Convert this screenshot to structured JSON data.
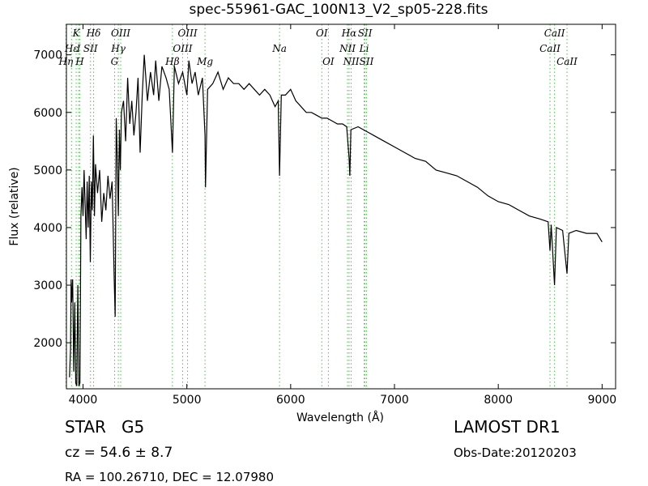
{
  "chart_data": {
    "type": "line",
    "title": "spec-55961-GAC_100N13_V2_sp05-228.fits",
    "xlabel": "Wavelength (Å)",
    "ylabel": "Flux (relative)",
    "xlim": [
      3840,
      9130
    ],
    "ylim": [
      1200,
      7530
    ],
    "xticks": [
      4000,
      5000,
      6000,
      7000,
      8000,
      9000
    ],
    "yticks": [
      2000,
      3000,
      4000,
      5000,
      6000,
      7000
    ],
    "color": "#000000",
    "line_marker_color": "#4cbf4c",
    "x": [
      3870,
      3880,
      3885,
      3890,
      3900,
      3910,
      3920,
      3930,
      3940,
      3950,
      3960,
      3970,
      3980,
      3990,
      4000,
      4010,
      4020,
      4030,
      4040,
      4050,
      4060,
      4070,
      4080,
      4090,
      4100,
      4110,
      4120,
      4140,
      4160,
      4180,
      4200,
      4220,
      4240,
      4260,
      4280,
      4300,
      4310,
      4320,
      4330,
      4340,
      4350,
      4360,
      4370,
      4390,
      4410,
      4430,
      4450,
      4470,
      4490,
      4510,
      4530,
      4550,
      4570,
      4590,
      4620,
      4650,
      4680,
      4700,
      4730,
      4760,
      4800,
      4830,
      4861,
      4880,
      4920,
      4960,
      5000,
      5020,
      5050,
      5080,
      5110,
      5150,
      5175,
      5180,
      5200,
      5250,
      5300,
      5350,
      5400,
      5450,
      5500,
      5550,
      5600,
      5650,
      5700,
      5750,
      5800,
      5850,
      5880,
      5893,
      5910,
      5950,
      6000,
      6050,
      6100,
      6150,
      6200,
      6250,
      6300,
      6350,
      6400,
      6450,
      6500,
      6540,
      6563,
      6570,
      6580,
      6650,
      6700,
      6750,
      6800,
      6900,
      7000,
      7100,
      7200,
      7300,
      7400,
      7500,
      7600,
      7700,
      7800,
      7900,
      8000,
      8100,
      8200,
      8300,
      8400,
      8480,
      8498,
      8510,
      8542,
      8560,
      8620,
      8662,
      8680,
      8750,
      8850,
      8950,
      9000
    ],
    "values": [
      1400,
      1900,
      3100,
      2700,
      3100,
      1500,
      2700,
      1300,
      1250,
      3000,
      1250,
      1300,
      4200,
      4700,
      4200,
      5000,
      4400,
      3800,
      4800,
      4000,
      4900,
      3400,
      4800,
      4300,
      5600,
      4200,
      5100,
      4600,
      5000,
      4100,
      4600,
      4300,
      4900,
      4500,
      4800,
      3100,
      2450,
      5900,
      5200,
      4200,
      5700,
      5000,
      6000,
      6200,
      5500,
      6600,
      5800,
      6200,
      5600,
      6000,
      6600,
      5300,
      6300,
      7000,
      6200,
      6700,
      6300,
      6900,
      6200,
      6800,
      6600,
      6400,
      5300,
      6800,
      6500,
      6700,
      6300,
      6900,
      6500,
      6700,
      6300,
      6600,
      5600,
      4700,
      6400,
      6500,
      6700,
      6400,
      6600,
      6500,
      6500,
      6400,
      6500,
      6400,
      6300,
      6400,
      6300,
      6100,
      6200,
      4900,
      6300,
      6300,
      6400,
      6200,
      6100,
      6000,
      6000,
      5950,
      5900,
      5900,
      5850,
      5800,
      5800,
      5750,
      5200,
      4900,
      5700,
      5750,
      5700,
      5650,
      5600,
      5500,
      5400,
      5300,
      5200,
      5150,
      5000,
      4950,
      4900,
      4800,
      4700,
      4550,
      4450,
      4400,
      4300,
      4200,
      4150,
      4100,
      3600,
      4050,
      3000,
      4000,
      3950,
      3200,
      3900,
      3950,
      3900,
      3900,
      3750
    ],
    "spectral_lines": [
      {
        "wavelength": 3835,
        "label": "Hη"
      },
      {
        "wavelength": 3889,
        "label": "Hε"
      },
      {
        "wavelength": 3934,
        "label": "K"
      },
      {
        "wavelength": 3957,
        "label": "I"
      },
      {
        "wavelength": 3969,
        "label": "H"
      },
      {
        "wavelength": 4072,
        "label": "SII"
      },
      {
        "wavelength": 4102,
        "label": "Hδ"
      },
      {
        "wavelength": 4340,
        "label": "Hγ"
      },
      {
        "wavelength": 4304,
        "label": "G"
      },
      {
        "wavelength": 4363,
        "label": "OIII"
      },
      {
        "wavelength": 4861,
        "label": "Hβ"
      },
      {
        "wavelength": 4959,
        "label": "OIII"
      },
      {
        "wavelength": 5007,
        "label": "OIII"
      },
      {
        "wavelength": 5175,
        "label": "Mg"
      },
      {
        "wavelength": 5893,
        "label": "Na"
      },
      {
        "wavelength": 6300,
        "label": "OI"
      },
      {
        "wavelength": 6363,
        "label": "OI"
      },
      {
        "wavelength": 6548,
        "label": "NII"
      },
      {
        "wavelength": 6563,
        "label": "Hα"
      },
      {
        "wavelength": 6583,
        "label": "NII"
      },
      {
        "wavelength": 6716,
        "label": "SII"
      },
      {
        "wavelength": 6708,
        "label": "Li"
      },
      {
        "wavelength": 6731,
        "label": "SII"
      },
      {
        "wavelength": 8542,
        "label": "CaII"
      },
      {
        "wavelength": 8498,
        "label": "CaII"
      },
      {
        "wavelength": 8662,
        "label": "CaII"
      }
    ],
    "info": {
      "object_class": "STAR   G5",
      "survey": "LAMOST DR1",
      "redshift": "cz = 54.6 ± 8.7",
      "obs_date": "Obs-Date:20120203",
      "coordinates": "RA = 100.26710, DEC = 12.07980"
    }
  }
}
